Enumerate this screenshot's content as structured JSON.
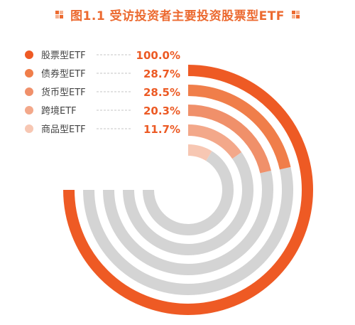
{
  "title": "图1.1  受访投资者主要投资股票型ETF",
  "colors": {
    "accent": "#ec6a30",
    "track": "#d4d4d4",
    "series": [
      "#ee5a24",
      "#f07e4a",
      "#f0906a",
      "#f3a88a",
      "#f7c7b3"
    ]
  },
  "chart_data": {
    "type": "radial-bar",
    "title": "图1.1  受访投资者主要投资股票型ETF",
    "max": 100,
    "unit": "%",
    "categories": [
      "股票型ETF",
      "债券型ETF",
      "货币型ETF",
      "跨境ETF",
      "商品型ETF"
    ],
    "values": [
      100.0,
      28.7,
      28.5,
      20.3,
      11.7
    ],
    "value_labels": [
      "100.0%",
      "28.7%",
      "28.5%",
      "20.3%",
      "11.7%"
    ],
    "legend_position": "top-left"
  }
}
